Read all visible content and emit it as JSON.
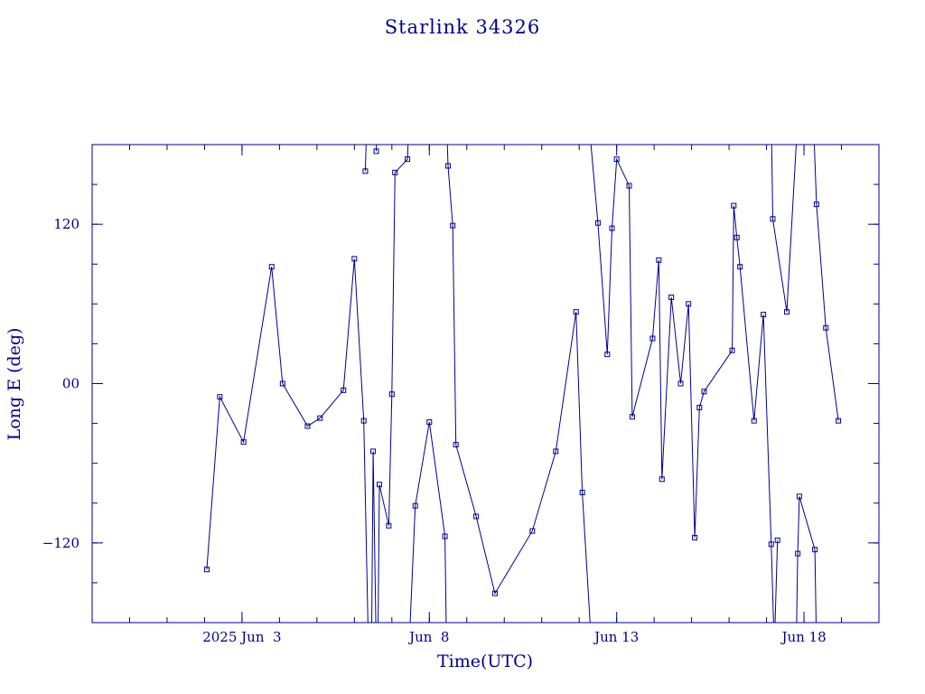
{
  "chart_data": {
    "type": "line",
    "title": "Starlink 34326",
    "xlabel": "Time(UTC)",
    "ylabel": "Long E (deg)",
    "xlim": [
      "2025-05-30T00:00",
      "2025-06-20T00:00"
    ],
    "ylim": [
      -180,
      180
    ],
    "ytick_labels": [
      {
        "value": 120,
        "label": "120"
      },
      {
        "value": 0,
        "label": "00"
      },
      {
        "value": -120,
        "label": "−120"
      }
    ],
    "xtick_labels": [
      {
        "value": "2025-06-03T00:00",
        "label": "2025 Jun  3"
      },
      {
        "value": "2025-06-08T00:00",
        "label": "Jun  8"
      },
      {
        "value": "2025-06-13T00:00",
        "label": "Jun 13"
      },
      {
        "value": "2025-06-18T00:00",
        "label": "Jun 18"
      }
    ],
    "grid": false,
    "color": "#00008b",
    "series": [
      {
        "points": [
          [
            "2025-06-02T01:27",
            -140
          ],
          [
            "2025-06-02T09:47",
            -10
          ],
          [
            "2025-06-03T01:00",
            -44
          ],
          [
            "2025-06-03T19:00",
            88
          ],
          [
            "2025-06-04T02:00",
            0
          ],
          [
            "2025-06-04T18:00",
            -32
          ],
          [
            "2025-06-05T02:00",
            -26
          ],
          [
            "2025-06-05T17:00",
            -5
          ],
          [
            "2025-06-06T00:00",
            94
          ],
          [
            "2025-06-06T06:00",
            -28
          ],
          [
            "2025-06-06T09:00",
            -200
          ]
        ]
      },
      {
        "points": [
          [
            "2025-06-06T07:00",
            160
          ],
          [
            "2025-06-06T08:00",
            200
          ]
        ]
      },
      {
        "points": [
          [
            "2025-06-06T11:00",
            -200
          ],
          [
            "2025-06-06T12:00",
            -51
          ],
          [
            "2025-06-06T14:00",
            -200
          ]
        ]
      },
      {
        "points": [
          [
            "2025-06-06T14:00",
            175
          ],
          [
            "2025-06-06T15:00",
            200
          ]
        ]
      },
      {
        "points": [
          [
            "2025-06-06T15:00",
            -200
          ],
          [
            "2025-06-06T16:00",
            -76
          ],
          [
            "2025-06-06T22:00",
            -107
          ],
          [
            "2025-06-07T00:00",
            -8
          ],
          [
            "2025-06-07T02:00",
            159
          ],
          [
            "2025-06-07T10:00",
            169
          ],
          [
            "2025-06-07T11:00",
            200
          ]
        ]
      },
      {
        "points": [
          [
            "2025-06-07T11:00",
            -200
          ],
          [
            "2025-06-07T15:00",
            -92
          ],
          [
            "2025-06-08T00:00",
            -29
          ],
          [
            "2025-06-08T10:00",
            -115
          ],
          [
            "2025-06-08T11:00",
            -200
          ]
        ]
      },
      {
        "points": [
          [
            "2025-06-08T11:00",
            200
          ],
          [
            "2025-06-08T12:00",
            164
          ],
          [
            "2025-06-08T15:00",
            119
          ],
          [
            "2025-06-08T17:00",
            -46
          ],
          [
            "2025-06-09T06:00",
            -100
          ],
          [
            "2025-06-09T18:00",
            -158
          ],
          [
            "2025-06-10T18:00",
            -111
          ],
          [
            "2025-06-11T09:00",
            -51
          ],
          [
            "2025-06-11T22:00",
            54
          ],
          [
            "2025-06-12T02:00",
            -82
          ],
          [
            "2025-06-12T08:00",
            -200
          ]
        ]
      },
      {
        "points": [
          [
            "2025-06-12T06:00",
            200
          ],
          [
            "2025-06-12T12:00",
            121
          ],
          [
            "2025-06-12T18:00",
            22
          ],
          [
            "2025-06-12T21:00",
            117
          ],
          [
            "2025-06-13T00:00",
            169
          ],
          [
            "2025-06-13T08:00",
            149
          ],
          [
            "2025-06-13T10:00",
            -25
          ],
          [
            "2025-06-13T23:00",
            34
          ],
          [
            "2025-06-14T03:00",
            93
          ],
          [
            "2025-06-14T05:00",
            -72
          ],
          [
            "2025-06-14T11:00",
            65
          ],
          [
            "2025-06-14T17:00",
            0
          ],
          [
            "2025-06-14T22:00",
            60
          ],
          [
            "2025-06-15T02:00",
            -116
          ],
          [
            "2025-06-15T05:00",
            -18
          ],
          [
            "2025-06-15T08:00",
            -6
          ],
          [
            "2025-06-16T02:00",
            25
          ],
          [
            "2025-06-16T03:00",
            134
          ],
          [
            "2025-06-16T05:00",
            110
          ],
          [
            "2025-06-16T07:00",
            88
          ],
          [
            "2025-06-16T16:00",
            -28
          ],
          [
            "2025-06-16T22:00",
            52
          ],
          [
            "2025-06-17T03:00",
            -121
          ],
          [
            "2025-06-17T05:00",
            -200
          ]
        ]
      },
      {
        "points": [
          [
            "2025-06-17T03:00",
            200
          ],
          [
            "2025-06-17T04:00",
            124
          ],
          [
            "2025-06-17T13:00",
            54
          ],
          [
            "2025-06-17T20:00",
            200
          ]
        ]
      },
      {
        "points": [
          [
            "2025-06-17T05:00",
            -200
          ],
          [
            "2025-06-17T07:00",
            -118
          ]
        ]
      },
      {
        "points": [
          [
            "2025-06-17T19:00",
            -200
          ],
          [
            "2025-06-17T20:00",
            -128
          ],
          [
            "2025-06-17T21:00",
            -85
          ],
          [
            "2025-06-18T07:00",
            -125
          ],
          [
            "2025-06-18T08:00",
            -200
          ]
        ]
      },
      {
        "points": [
          [
            "2025-06-18T06:00",
            200
          ],
          [
            "2025-06-18T08:00",
            135
          ],
          [
            "2025-06-18T14:00",
            42
          ],
          [
            "2025-06-18T22:00",
            -28
          ]
        ]
      }
    ]
  }
}
